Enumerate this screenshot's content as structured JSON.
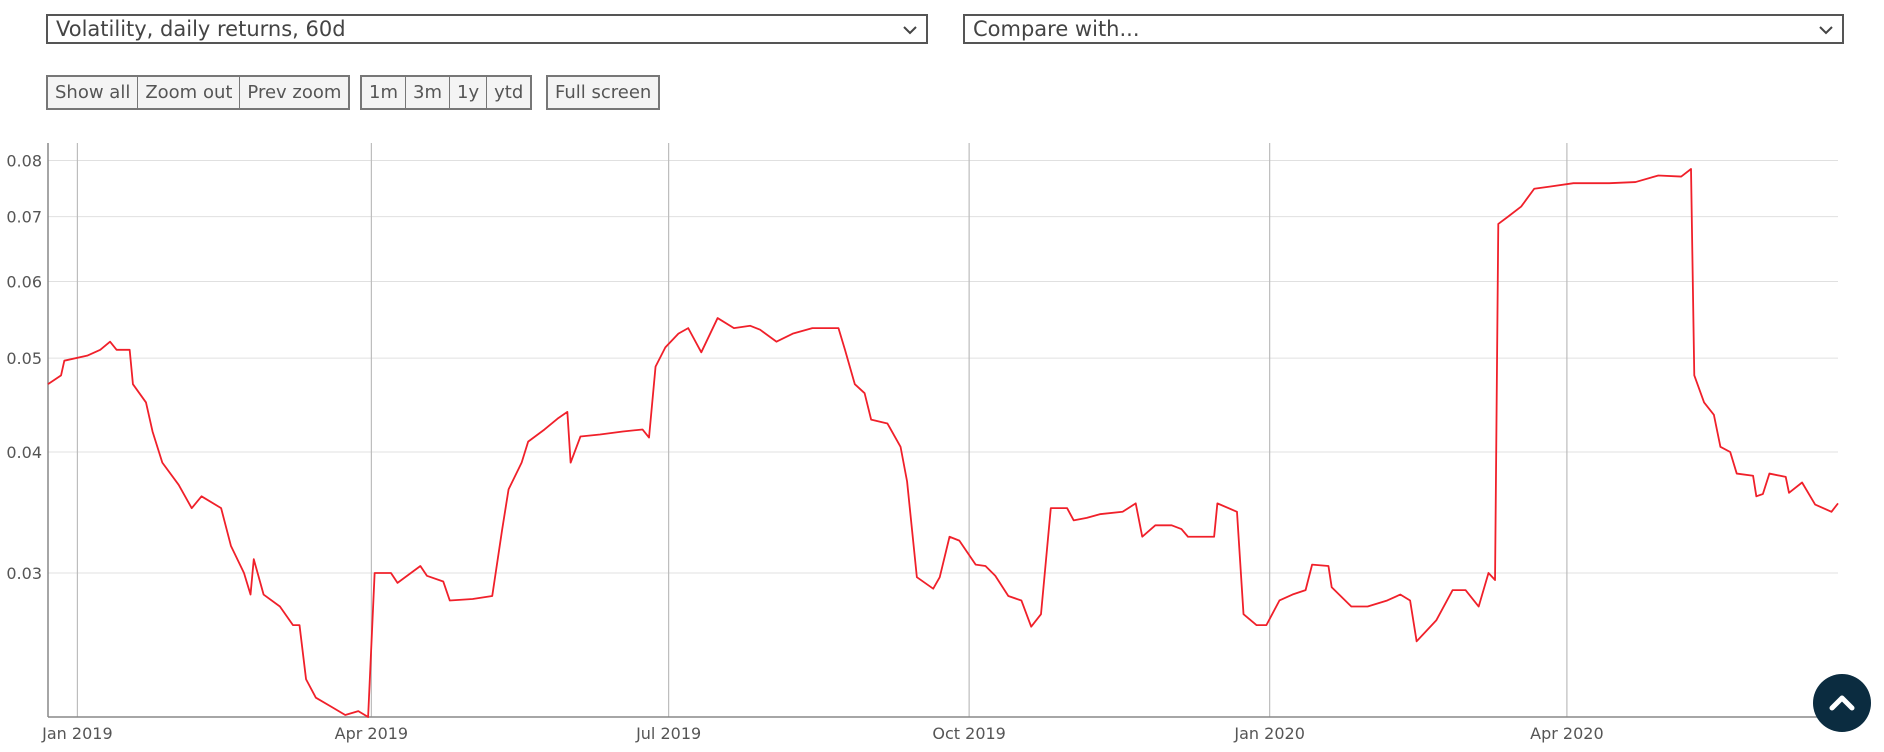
{
  "controls": {
    "metric_select": "Volatility, daily returns, 60d",
    "compare_select": "Compare with...",
    "zoom_buttons": [
      "Show all",
      "Zoom out",
      "Prev zoom"
    ],
    "range_buttons": [
      "1m",
      "3m",
      "1y",
      "ytd"
    ],
    "fullscreen_button": "Full screen"
  },
  "chart_data": {
    "type": "line",
    "color": "#f0202a",
    "log_scale": true,
    "grid": true,
    "xlim": [
      "2018-12-23",
      "2020-06-23"
    ],
    "xticks": [
      {
        "value": "2019-01-01",
        "label": "Jan 2019"
      },
      {
        "value": "2019-04-01",
        "label": "Apr 2019"
      },
      {
        "value": "2019-07-01",
        "label": "Jul 2019"
      },
      {
        "value": "2019-10-01",
        "label": "Oct 2019"
      },
      {
        "value": "2020-01-01",
        "label": "Jan 2020"
      },
      {
        "value": "2020-04-01",
        "label": "Apr 2020"
      }
    ],
    "ylim": [
      0.0213,
      0.0834
    ],
    "yticks": [
      0.03,
      0.04,
      0.05,
      0.06,
      0.07,
      0.08
    ],
    "x": [
      "2018-12-23",
      "2018-12-27",
      "2018-12-28",
      "2019-01-04",
      "2019-01-08",
      "2019-01-11",
      "2019-01-13",
      "2019-01-17",
      "2019-01-18",
      "2019-01-22",
      "2019-01-24",
      "2019-01-27",
      "2019-02-01",
      "2019-02-05",
      "2019-02-08",
      "2019-02-14",
      "2019-02-17",
      "2019-02-21",
      "2019-02-23",
      "2019-02-24",
      "2019-02-27",
      "2019-03-04",
      "2019-03-08",
      "2019-03-10",
      "2019-03-12",
      "2019-03-15",
      "2019-03-20",
      "2019-03-24",
      "2019-03-28",
      "2019-03-31",
      "2019-04-02",
      "2019-04-07",
      "2019-04-09",
      "2019-04-16",
      "2019-04-18",
      "2019-04-23",
      "2019-04-25",
      "2019-05-02",
      "2019-05-08",
      "2019-05-11",
      "2019-05-13",
      "2019-05-17",
      "2019-05-19",
      "2019-05-24",
      "2019-05-28",
      "2019-05-31",
      "2019-06-01",
      "2019-06-04",
      "2019-06-10",
      "2019-06-17",
      "2019-06-23",
      "2019-06-25",
      "2019-06-27",
      "2019-06-30",
      "2019-07-04",
      "2019-07-07",
      "2019-07-11",
      "2019-07-16",
      "2019-07-21",
      "2019-07-26",
      "2019-07-29",
      "2019-08-03",
      "2019-08-08",
      "2019-08-14",
      "2019-08-22",
      "2019-08-24",
      "2019-08-27",
      "2019-08-30",
      "2019-09-01",
      "2019-09-06",
      "2019-09-10",
      "2019-09-12",
      "2019-09-15",
      "2019-09-20",
      "2019-09-22",
      "2019-09-25",
      "2019-09-28",
      "2019-10-03",
      "2019-10-06",
      "2019-10-09",
      "2019-10-13",
      "2019-10-17",
      "2019-10-20",
      "2019-10-23",
      "2019-10-26",
      "2019-10-31",
      "2019-11-02",
      "2019-11-06",
      "2019-11-10",
      "2019-11-17",
      "2019-11-21",
      "2019-11-23",
      "2019-11-27",
      "2019-12-02",
      "2019-12-05",
      "2019-12-07",
      "2019-12-15",
      "2019-12-16",
      "2019-12-22",
      "2019-12-24",
      "2019-12-28",
      "2019-12-31",
      "2020-01-04",
      "2020-01-08",
      "2020-01-12",
      "2020-01-14",
      "2020-01-19",
      "2020-01-20",
      "2020-01-26",
      "2020-01-31",
      "2020-02-06",
      "2020-02-10",
      "2020-02-13",
      "2020-02-15",
      "2020-02-21",
      "2020-02-26",
      "2020-03-01",
      "2020-03-05",
      "2020-03-08",
      "2020-03-10",
      "2020-03-11",
      "2020-03-14",
      "2020-03-18",
      "2020-03-22",
      "2020-03-27",
      "2020-04-03",
      "2020-04-14",
      "2020-04-22",
      "2020-04-29",
      "2020-05-06",
      "2020-05-09",
      "2020-05-10",
      "2020-05-13",
      "2020-05-16",
      "2020-05-18",
      "2020-05-21",
      "2020-05-23",
      "2020-05-28",
      "2020-05-29",
      "2020-05-31",
      "2020-06-02",
      "2020-06-07",
      "2020-06-08",
      "2020-06-12",
      "2020-06-16",
      "2020-06-21",
      "2020-06-23"
    ],
    "values": [
      0.047,
      0.048,
      0.0497,
      0.0503,
      0.051,
      0.052,
      0.051,
      0.051,
      0.047,
      0.045,
      0.042,
      0.039,
      0.037,
      0.035,
      0.036,
      0.035,
      0.032,
      0.03,
      0.0285,
      0.031,
      0.0285,
      0.0277,
      0.0265,
      0.0265,
      0.0233,
      0.0223,
      0.0218,
      0.0214,
      0.0216,
      0.0213,
      0.03,
      0.03,
      0.0293,
      0.0305,
      0.0298,
      0.0294,
      0.0281,
      0.0282,
      0.0284,
      0.0332,
      0.0366,
      0.039,
      0.041,
      0.0422,
      0.0433,
      0.044,
      0.039,
      0.0415,
      0.0417,
      0.042,
      0.0422,
      0.0414,
      0.049,
      0.0513,
      0.053,
      0.0537,
      0.0507,
      0.055,
      0.0537,
      0.054,
      0.0535,
      0.052,
      0.053,
      0.0537,
      0.0537,
      0.051,
      0.047,
      0.046,
      0.0432,
      0.0428,
      0.0405,
      0.0373,
      0.0297,
      0.0289,
      0.0297,
      0.0327,
      0.0324,
      0.0306,
      0.0305,
      0.0298,
      0.0284,
      0.0281,
      0.0264,
      0.0272,
      0.035,
      0.035,
      0.034,
      0.0342,
      0.0345,
      0.0347,
      0.0354,
      0.0327,
      0.0336,
      0.0336,
      0.0333,
      0.0327,
      0.0327,
      0.0354,
      0.0347,
      0.0272,
      0.0265,
      0.0265,
      0.0281,
      0.0285,
      0.0288,
      0.0306,
      0.0305,
      0.029,
      0.0277,
      0.0277,
      0.0281,
      0.0285,
      0.0281,
      0.0255,
      0.0268,
      0.0288,
      0.0288,
      0.0277,
      0.03,
      0.0295,
      0.0688,
      0.07,
      0.0717,
      0.0748,
      0.0752,
      0.0758,
      0.0758,
      0.076,
      0.0772,
      0.077,
      0.0784,
      0.048,
      0.045,
      0.0437,
      0.0405,
      0.04,
      0.038,
      0.0378,
      0.036,
      0.0362,
      0.038,
      0.0377,
      0.0363,
      0.0372,
      0.0353,
      0.0347,
      0.0354
    ]
  }
}
